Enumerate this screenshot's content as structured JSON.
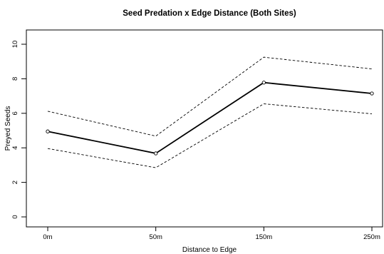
{
  "chart_data": {
    "type": "line",
    "title": "Seed Predation x Edge Distance (Both Sites)",
    "xlabel": "Distance to Edge",
    "ylabel": "Preyed Seeds",
    "categories": [
      "0m",
      "50m",
      "150m",
      "250m"
    ],
    "ylim": [
      0,
      10
    ],
    "yticks": [
      0,
      2,
      4,
      6,
      8,
      10
    ],
    "grid": false,
    "legend": "none",
    "series": [
      {
        "role": "mean",
        "style": "solid",
        "markers": true,
        "values": [
          4.95,
          3.68,
          7.78,
          7.15
        ]
      },
      {
        "role": "upper",
        "style": "dashed",
        "markers": false,
        "values": [
          6.12,
          4.68,
          9.25,
          8.57
        ]
      },
      {
        "role": "lower",
        "style": "dashed",
        "markers": false,
        "values": [
          3.96,
          2.85,
          6.55,
          5.97
        ]
      }
    ]
  }
}
